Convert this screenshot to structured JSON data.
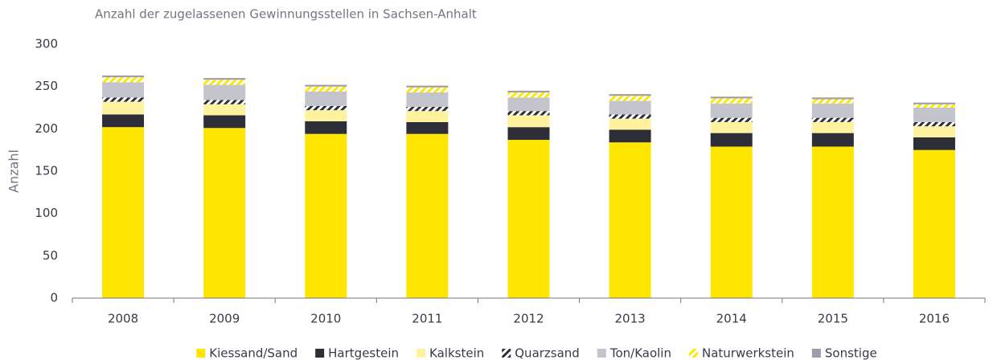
{
  "chart_data": {
    "type": "stacked_bar",
    "title": "Anzahl der zugelassenen Gewinnungsstellen in Sachsen-Anhalt",
    "y_label": "Anzahl",
    "categories": [
      "2008",
      "2009",
      "2010",
      "2011",
      "2012",
      "2013",
      "2014",
      "2015",
      "2016"
    ],
    "series": [
      {
        "name": "Kiessand/Sand",
        "color": "#ffe600",
        "values": [
          202,
          201,
          194,
          194,
          187,
          184,
          179,
          179,
          175
        ]
      },
      {
        "name": "Hartgestein",
        "color": "#2e2e38",
        "values": [
          15,
          15,
          15,
          14,
          15,
          15,
          16,
          16,
          15
        ]
      },
      {
        "name": "Kalkstein",
        "color": "#fff29e",
        "values": [
          15,
          13,
          13,
          13,
          14,
          13,
          13,
          13,
          13
        ]
      },
      {
        "name": "Quarzsand",
        "color": "#2e2e38",
        "pattern": "hatch",
        "values": [
          5,
          5,
          5,
          5,
          5,
          5,
          5,
          5,
          5
        ]
      },
      {
        "name": "Ton/Kaolin",
        "color": "#c4c4cd",
        "values": [
          18,
          18,
          17,
          17,
          16,
          16,
          17,
          17,
          17
        ]
      },
      {
        "name": "Naturwerkstein",
        "color": "#ffe600",
        "pattern": "hatch",
        "values": [
          6,
          6,
          6,
          6,
          6,
          6,
          6,
          5,
          4
        ]
      },
      {
        "name": "Sonstige",
        "color": "#9d9da8",
        "values": [
          2,
          2,
          2,
          2,
          2,
          2,
          2,
          2,
          2
        ]
      }
    ],
    "ylim": [
      0,
      300
    ],
    "yticks": [
      0,
      50,
      100,
      150,
      200,
      250,
      300
    ],
    "grid": false,
    "legend": "bottom"
  }
}
